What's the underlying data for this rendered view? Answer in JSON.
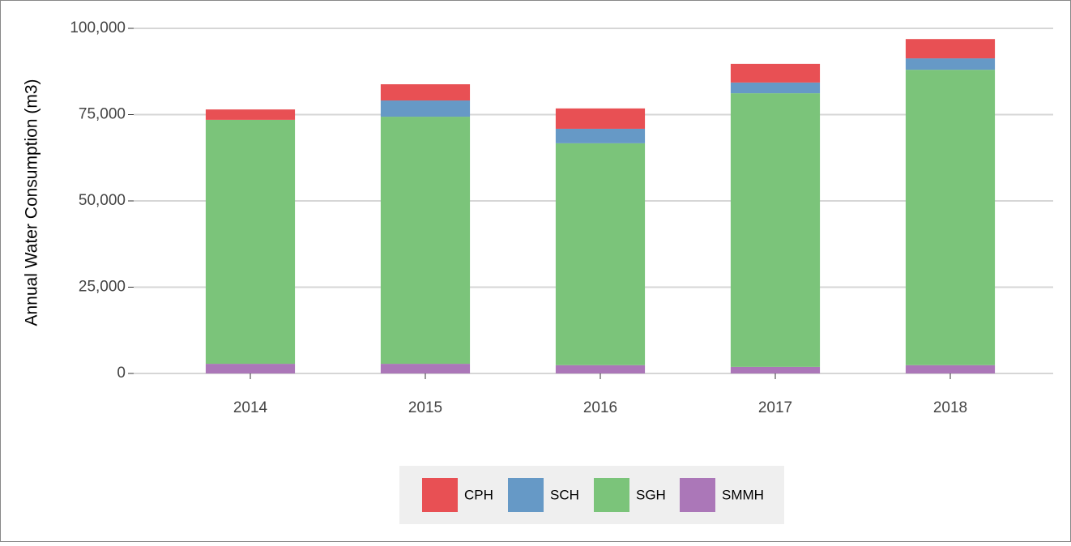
{
  "chart_data": {
    "type": "stacked_bar",
    "y_label": "Annual Water Consumption (m3)",
    "categories": [
      "2014",
      "2015",
      "2016",
      "2017",
      "2018"
    ],
    "series": [
      {
        "name": "SMMH",
        "color": "#ab77b8",
        "values": [
          2800,
          2800,
          2400,
          1900,
          2400
        ]
      },
      {
        "name": "SGH",
        "color": "#7bc47a",
        "values": [
          70700,
          71600,
          64300,
          79300,
          85600
        ]
      },
      {
        "name": "SCH",
        "color": "#6699c6",
        "values": [
          0,
          4700,
          4200,
          3100,
          3300
        ]
      },
      {
        "name": "CPH",
        "color": "#e85054",
        "values": [
          3000,
          4700,
          5900,
          5400,
          5600
        ]
      }
    ],
    "ylim": [
      0,
      100000
    ],
    "yticks": [
      0,
      {
        "value": 25000,
        "label": "25,000"
      },
      {
        "value": 50000,
        "label": "50,000"
      },
      {
        "value": 75000,
        "label": "75,000"
      },
      {
        "value": 100000,
        "label": "100,000"
      }
    ],
    "grid": true,
    "legend_position": "bottom",
    "legend_order": [
      3,
      2,
      1,
      0
    ]
  }
}
